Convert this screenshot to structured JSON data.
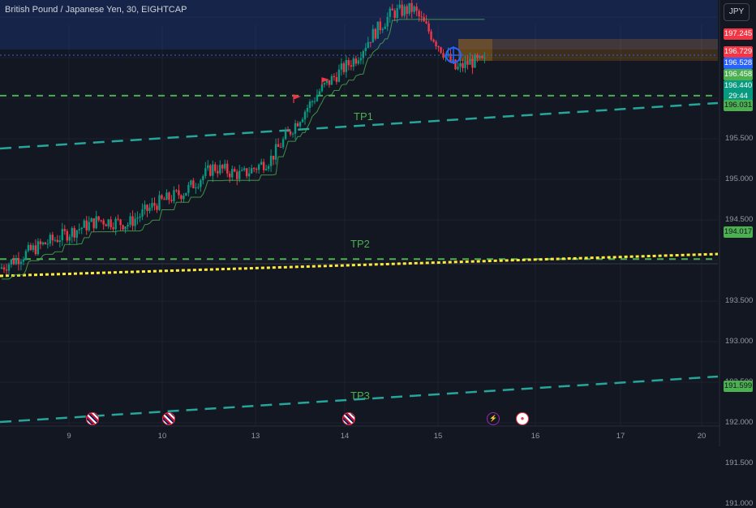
{
  "header": {
    "title": "British Pound / Japanese Yen, 30, EIGHTCAP",
    "currency_button": "JPY"
  },
  "colors": {
    "background": "#131722",
    "grid": "#1e222d",
    "up": "#089981",
    "down": "#f23645",
    "tp_line": "#4caf50",
    "trend_line": "#26a69a",
    "yellow_line": "#ffeb3b",
    "red_line": "#f23645",
    "blue_zone": "#2962ff",
    "orange_zone": "#ff9800"
  },
  "chart_data": {
    "type": "candlestick",
    "symbol": "British Pound / Japanese Yen",
    "interval": "30",
    "broker": "EIGHTCAP",
    "currency": "JPY",
    "ylim": [
      190.9,
      197.45
    ],
    "y_ticks": [
      "195.500",
      "195.000",
      "194.500",
      "193.500",
      "193.000",
      "192.500",
      "192.000",
      "191.500",
      "191.000"
    ],
    "x_ticks": [
      "9",
      "10",
      "13",
      "14",
      "15",
      "16",
      "17",
      "20"
    ],
    "price_labels": [
      {
        "value": "197.245",
        "kind": "red_line"
      },
      {
        "value": "196.729",
        "kind": "red_zone"
      },
      {
        "value": "196.528",
        "kind": "blue_zone"
      },
      {
        "value": "196.458",
        "kind": "green"
      },
      {
        "value": "196.440",
        "countdown": "29:44",
        "kind": "current"
      },
      {
        "value": "196.031",
        "kind": "tp"
      },
      {
        "value": "194.017",
        "kind": "tp"
      },
      {
        "value": "191.599",
        "kind": "tp"
      }
    ],
    "levels": {
      "red_dashed": 197.245,
      "tp1": 196.031,
      "tp2": 194.017,
      "tp3": 191.599
    },
    "annotations": [
      "TP1",
      "TP2",
      "TP3"
    ],
    "price_path": [
      [
        0,
        193.9
      ],
      [
        0.05,
        194.15
      ],
      [
        0.1,
        194.35
      ],
      [
        0.14,
        194.5
      ],
      [
        0.18,
        194.45
      ],
      [
        0.22,
        194.7
      ],
      [
        0.26,
        194.85
      ],
      [
        0.3,
        195.15
      ],
      [
        0.34,
        195.05
      ],
      [
        0.38,
        195.25
      ],
      [
        0.42,
        195.75
      ],
      [
        0.45,
        196.1
      ],
      [
        0.48,
        196.35
      ],
      [
        0.5,
        196.5
      ],
      [
        0.52,
        196.75
      ],
      [
        0.55,
        197.05
      ],
      [
        0.58,
        197.1
      ],
      [
        0.6,
        196.85
      ],
      [
        0.62,
        196.6
      ],
      [
        0.64,
        196.35
      ],
      [
        0.66,
        196.45
      ],
      [
        0.68,
        196.44
      ]
    ]
  }
}
